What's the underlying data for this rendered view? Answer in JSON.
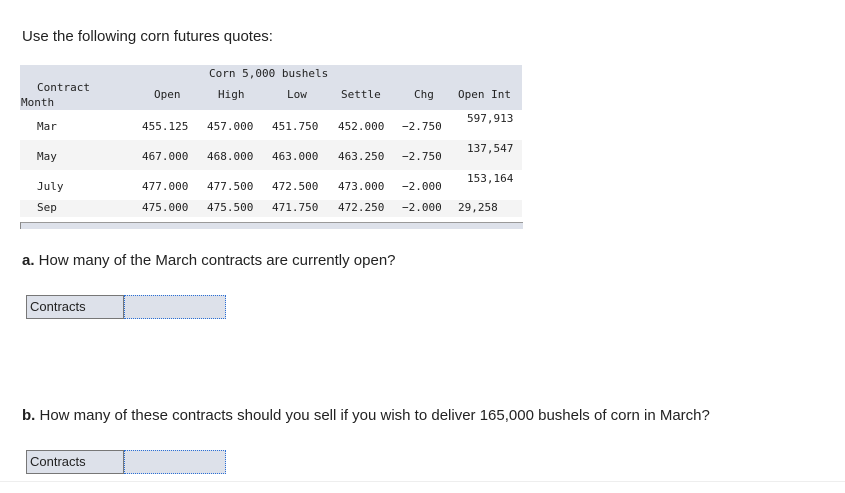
{
  "intro": "Use the following corn futures quotes:",
  "table": {
    "title": "Corn 5,000 bushels",
    "headers": {
      "month_line1": "Contract",
      "month_line2": "Month",
      "open": "Open",
      "high": "High",
      "low": "Low",
      "settle": "Settle",
      "chg": "Chg",
      "open_int": "Open Int"
    },
    "rows": [
      {
        "month": "Mar",
        "open": "455.125",
        "high": "457.000",
        "low": "451.750",
        "settle": "452.000",
        "chg": "−2.750",
        "open_int": "597,913"
      },
      {
        "month": "May",
        "open": "467.000",
        "high": "468.000",
        "low": "463.000",
        "settle": "463.250",
        "chg": "−2.750",
        "open_int": "137,547"
      },
      {
        "month": "July",
        "open": "477.000",
        "high": "477.500",
        "low": "472.500",
        "settle": "473.000",
        "chg": "−2.000",
        "open_int": "153,164"
      },
      {
        "month": "Sep",
        "open": "475.000",
        "high": "475.500",
        "low": "471.750",
        "settle": "472.250",
        "chg": "−2.000",
        "open_int": "29,258"
      }
    ]
  },
  "question_a": {
    "prefix": "a.",
    "text": " How many of the March contracts are currently open?",
    "label": "Contracts",
    "value": ""
  },
  "question_b": {
    "prefix": "b.",
    "text": " How many of these contracts should you sell if you wish to deliver 165,000 bushels of corn in March?",
    "label": "Contracts",
    "value": ""
  }
}
